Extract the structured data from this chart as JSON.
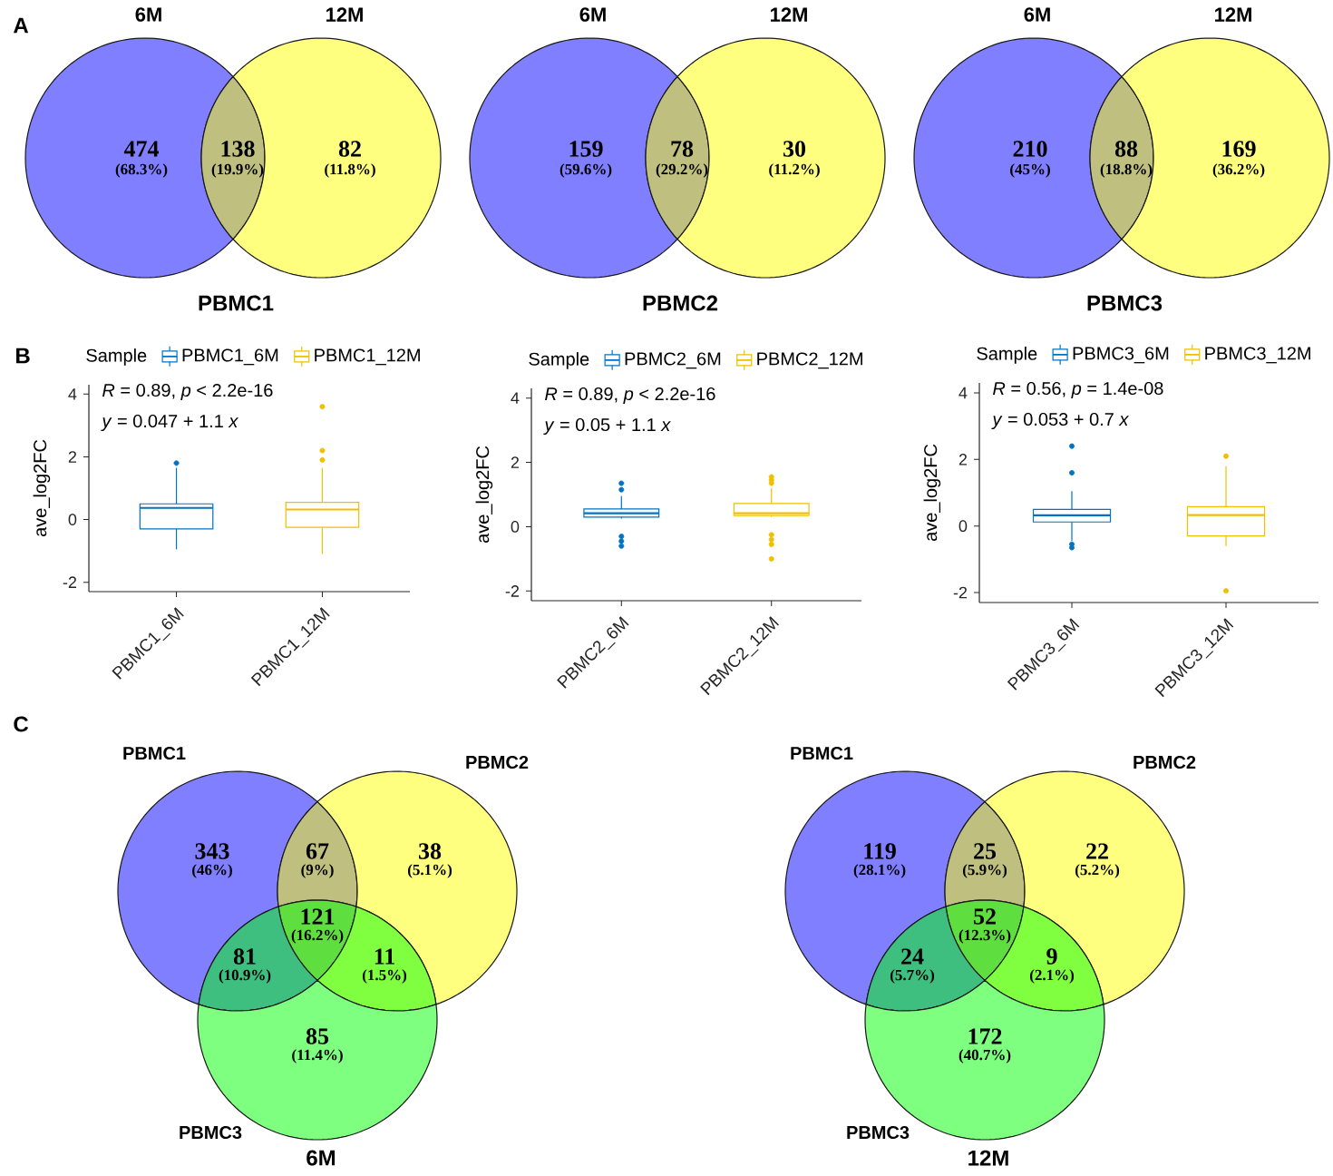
{
  "chart_data": [
    {
      "type": "other",
      "title": "PBMC1",
      "categories": [
        null,
        null,
        null
      ],
      "values": [
        474,
        138,
        82
      ],
      "data_labels": true,
      "colors": [
        "#7f7fff",
        "#bfbf7f",
        "#ffff7f"
      ],
      "annotations": [
        "6M",
        "12M",
        "(68.3%)",
        "(19.9%)",
        "(11.8%)",
        "A"
      ]
    },
    {
      "type": "other",
      "title": "PBMC2",
      "categories": [
        null,
        null,
        null
      ],
      "values": [
        159,
        78,
        30
      ],
      "data_labels": true,
      "colors": [
        "#7f7fff",
        "#bfbf7f",
        "#ffff7f"
      ],
      "annotations": [
        "6M",
        "12M",
        "(59.6%)",
        "(29.2%)",
        "(11.2%)"
      ]
    },
    {
      "type": "other",
      "title": "PBMC3",
      "categories": [
        null,
        null,
        null
      ],
      "values": [
        210,
        88,
        169
      ],
      "data_labels": true,
      "colors": [
        "#7f7fff",
        "#bfbf7f",
        "#ffff7f"
      ],
      "annotations": [
        "6M",
        "12M",
        "(45%)",
        "(18.8%)",
        "(36.2%)"
      ]
    },
    {
      "type": "box",
      "categories": [
        "PBMC1_6M",
        "PBMC1_12M"
      ],
      "ylabel": "ave_log2FC",
      "legend_title": "Sample",
      "legend": "top",
      "ylim": [
        -2.3,
        4.3
      ],
      "yticks": [
        -2,
        0,
        2,
        4
      ],
      "series": [
        {
          "name": "PBMC1_6M",
          "color": "#0073c2",
          "boxes": [
            {
              "low": -0.95,
              "q1": -0.3,
              "median": 0.37,
              "q3": 0.5,
              "high": 1.65,
              "outliers": [
                1.8
              ]
            },
            null
          ]
        },
        {
          "name": "PBMC1_12M",
          "color": "#efc000",
          "boxes": [
            null,
            {
              "low": -1.1,
              "q1": -0.25,
              "median": 0.32,
              "q3": 0.55,
              "high": 1.65,
              "outliers": [
                1.9,
                2.2,
                3.6
              ]
            }
          ]
        }
      ],
      "annotations": [
        "*R* = 0.89, *p* < 2.2e-16",
        "*y* = 0.047 + 1.1 *x*",
        "B"
      ]
    },
    {
      "type": "box",
      "categories": [
        "PBMC2_6M",
        "PBMC2_12M"
      ],
      "ylabel": "ave_log2FC",
      "legend_title": "Sample",
      "legend": "top",
      "ylim": [
        -2.3,
        4.3
      ],
      "yticks": [
        -2,
        0,
        2,
        4
      ],
      "series": [
        {
          "name": "PBMC2_6M",
          "color": "#0073c2",
          "boxes": [
            {
              "low": 0.25,
              "q1": 0.3,
              "median": 0.42,
              "q3": 0.55,
              "high": 0.95,
              "outliers": [
                1.35,
                1.15,
                -0.3,
                -0.45,
                -0.6
              ]
            },
            null
          ]
        },
        {
          "name": "PBMC2_12M",
          "color": "#efc000",
          "boxes": [
            null,
            {
              "low": 0.3,
              "q1": 0.35,
              "median": 0.42,
              "q3": 0.72,
              "high": 1.2,
              "outliers": [
                1.35,
                1.45,
                1.55,
                -0.25,
                -0.4,
                -0.55,
                -1.0
              ]
            }
          ]
        }
      ],
      "annotations": [
        "*R* = 0.89, *p* < 2.2e-16",
        "*y* = 0.05 + 1.1 *x*"
      ]
    },
    {
      "type": "box",
      "categories": [
        "PBMC3_6M",
        "PBMC3_12M"
      ],
      "ylabel": "ave_log2FC",
      "legend_title": "Sample",
      "legend": "top",
      "ylim": [
        -2.3,
        4.3
      ],
      "yticks": [
        -2,
        0,
        2,
        4
      ],
      "series": [
        {
          "name": "PBMC3_6M",
          "color": "#0073c2",
          "boxes": [
            {
              "low": -0.45,
              "q1": 0.12,
              "median": 0.32,
              "q3": 0.5,
              "high": 1.05,
              "outliers": [
                2.4,
                1.6,
                -0.55,
                -0.65
              ]
            },
            null
          ]
        },
        {
          "name": "PBMC3_12M",
          "color": "#efc000",
          "boxes": [
            null,
            {
              "low": -0.6,
              "q1": -0.3,
              "median": 0.33,
              "q3": 0.58,
              "high": 1.8,
              "outliers": [
                2.1,
                -1.95
              ]
            }
          ]
        }
      ],
      "annotations": [
        "*R* = 0.56, *p* = 1.4e-08",
        "*y* = 0.053 + 0.7 *x*"
      ]
    },
    {
      "type": "other",
      "title": "6M",
      "categories": [
        null,
        null,
        null,
        null,
        null,
        null,
        null
      ],
      "values": [
        343,
        67,
        38,
        121,
        81,
        11,
        85
      ],
      "data_labels": true,
      "colors": [
        "#7f7fff",
        "#bfbf7f",
        "#ffff7f",
        "#5fdf3f",
        "#3fbf7f",
        "#7fff3f",
        "#7fff7f"
      ],
      "annotations": [
        "PBMC1",
        "PBMC2",
        "PBMC3",
        "(46%)",
        "(9%)",
        "(5.1%)",
        "(16.2%)",
        "(10.9%)",
        "(1.5%)",
        "(11.4%)",
        "C"
      ]
    },
    {
      "type": "other",
      "title": "12M",
      "categories": [
        null,
        null,
        null,
        null,
        null,
        null,
        null
      ],
      "values": [
        119,
        25,
        22,
        52,
        24,
        9,
        172
      ],
      "data_labels": true,
      "colors": [
        "#7f7fff",
        "#bfbf7f",
        "#ffff7f",
        "#5fdf3f",
        "#3fbf7f",
        "#7fff3f",
        "#7fff7f"
      ],
      "annotations": [
        "PBMC1",
        "PBMC2",
        "PBMC3",
        "(28.1%)",
        "(5.9%)",
        "(5.2%)",
        "(12.3%)",
        "(5.7%)",
        "(2.1%)",
        "(40.7%)"
      ]
    }
  ]
}
